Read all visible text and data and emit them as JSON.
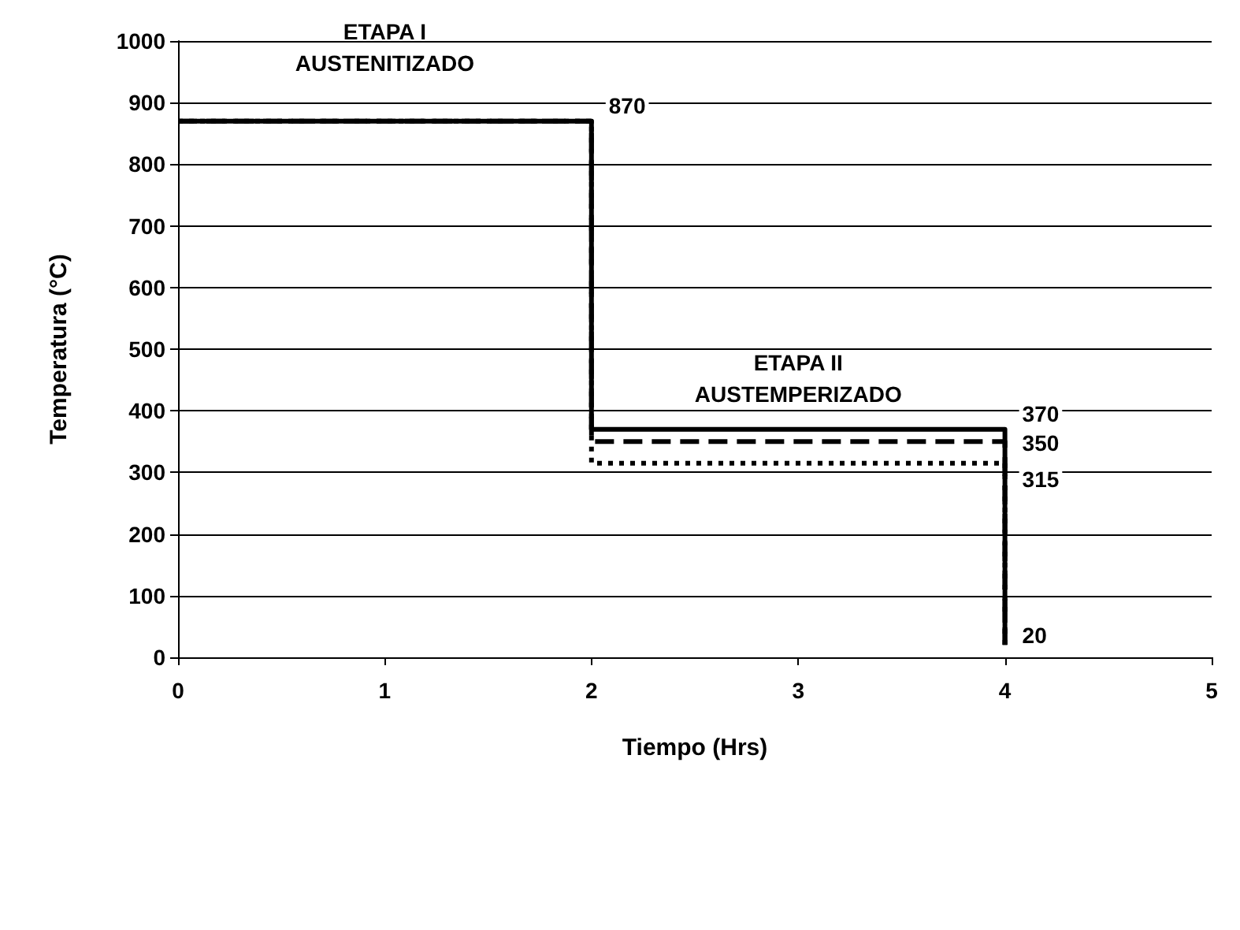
{
  "chart_data": {
    "type": "line",
    "xlabel": "Tiempo (Hrs)",
    "ylabel": "Temperatura (°C)",
    "x": [
      0,
      2,
      2,
      4,
      4
    ],
    "series": [
      {
        "color": "#000000",
        "line_style": "solid",
        "values": [
          870,
          870,
          370,
          370,
          20
        ],
        "value_labels": [
          null,
          "870",
          null,
          "370",
          "20"
        ]
      },
      {
        "color": "#000000",
        "line_style": "dashed",
        "values": [
          870,
          870,
          350,
          350,
          20
        ],
        "value_labels": [
          null,
          null,
          null,
          "350",
          null
        ]
      },
      {
        "color": "#000000",
        "line_style": "dotted",
        "values": [
          870,
          870,
          315,
          315,
          20
        ],
        "value_labels": [
          null,
          null,
          null,
          "315",
          null
        ]
      }
    ],
    "xlim": [
      0,
      5
    ],
    "xticks": [
      0,
      1,
      2,
      3,
      4,
      5
    ],
    "ylim": [
      0,
      1000
    ],
    "yticks": [
      0,
      100,
      200,
      300,
      400,
      500,
      600,
      700,
      800,
      900,
      1000
    ],
    "grid": "y",
    "marker": "none",
    "annotations": [
      "ETAPA I\nAUSTENITIZADO",
      "ETAPA II\nAUSTEMPERIZADO"
    ]
  }
}
